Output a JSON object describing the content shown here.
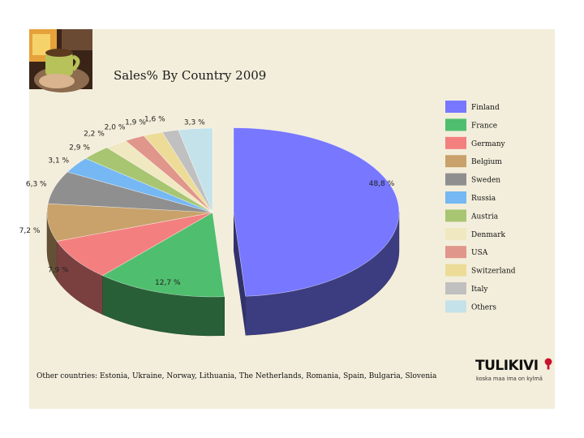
{
  "title": "Sales% By Country 2009",
  "footnote": "Other countries: Estonia, Ukraine, Norway, Lithuania, The Netherlands, Romania, Spain, Bulgaria, Slovenia",
  "logo": {
    "word": "TULIKIVI",
    "tagline": "koska maa ima on kylmä",
    "mark_color": "#c8102e"
  },
  "chart_data": {
    "type": "pie",
    "title": "Sales% By Country 2009",
    "unit": "%",
    "legend_position": "right",
    "exploded": [
      "Finland"
    ],
    "slices": [
      {
        "name": "Finland",
        "value": 48.8,
        "label": "48,8 %",
        "color": "#7777ff"
      },
      {
        "name": "France",
        "value": 12.7,
        "label": "12,7 %",
        "color": "#4fbe6e"
      },
      {
        "name": "Germany",
        "value": 7.9,
        "label": "7,9 %",
        "color": "#f47f7f"
      },
      {
        "name": "Belgium",
        "value": 7.2,
        "label": "7,2 %",
        "color": "#c8a26a"
      },
      {
        "name": "Sweden",
        "value": 6.3,
        "label": "6,3 %",
        "color": "#8f8f8f"
      },
      {
        "name": "Russia",
        "value": 3.1,
        "label": "3,1 %",
        "color": "#75b8f3"
      },
      {
        "name": "Austria",
        "value": 2.9,
        "label": "2,9 %",
        "color": "#a8c572"
      },
      {
        "name": "Denmark",
        "value": 2.2,
        "label": "2,2 %",
        "color": "#f0e8c0"
      },
      {
        "name": "USA",
        "value": 2.0,
        "label": "2,0 %",
        "color": "#e0968a"
      },
      {
        "name": "Switzerland",
        "value": 1.9,
        "label": "1,9 %",
        "color": "#ecdc98"
      },
      {
        "name": "Italy",
        "value": 1.6,
        "label": "1,6 %",
        "color": "#c0c0c0"
      },
      {
        "name": "Others",
        "value": 3.3,
        "label": "3,3 %",
        "color": "#c4e2ea"
      }
    ]
  }
}
